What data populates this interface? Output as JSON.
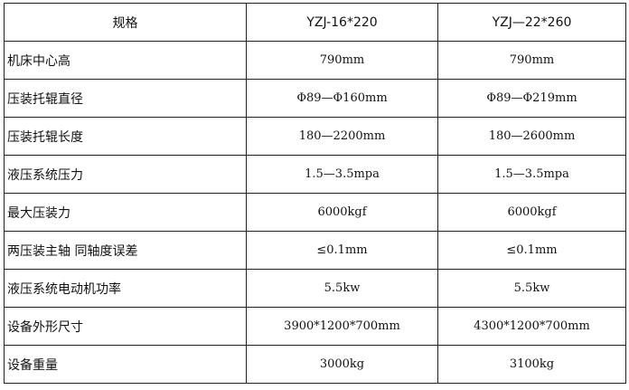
{
  "header": {
    "label": "规格",
    "models": [
      "YZJ-16*220",
      "YZJ—22*260"
    ]
  },
  "rows": [
    {
      "label": "机床中心高",
      "values": [
        "790mm",
        "790mm"
      ]
    },
    {
      "label": "压装托辊直径",
      "values": [
        "Φ89—Φ160mm",
        "Φ89—Φ219mm"
      ]
    },
    {
      "label": "压装托辊长度",
      "values": [
        "180—2200mm",
        "180—2600mm"
      ]
    },
    {
      "label": "液压系统压力",
      "values": [
        "1.5—3.5mpa",
        "1.5—3.5mpa"
      ]
    },
    {
      "label": "最大压装力",
      "values": [
        "6000kgf",
        "6000kgf"
      ]
    },
    {
      "label": "两压装主轴 同轴度误差",
      "values": [
        "≤0.1mm",
        "≤0.1mm"
      ]
    },
    {
      "label": "液压系统电动机功率",
      "values": [
        "5.5kw",
        "5.5kw"
      ]
    },
    {
      "label": "设备外形尺寸",
      "values": [
        "3900*1200*700mm",
        "4300*1200*700mm"
      ]
    },
    {
      "label": "设备重量",
      "values": [
        "3000kg",
        "3100kg"
      ]
    }
  ]
}
